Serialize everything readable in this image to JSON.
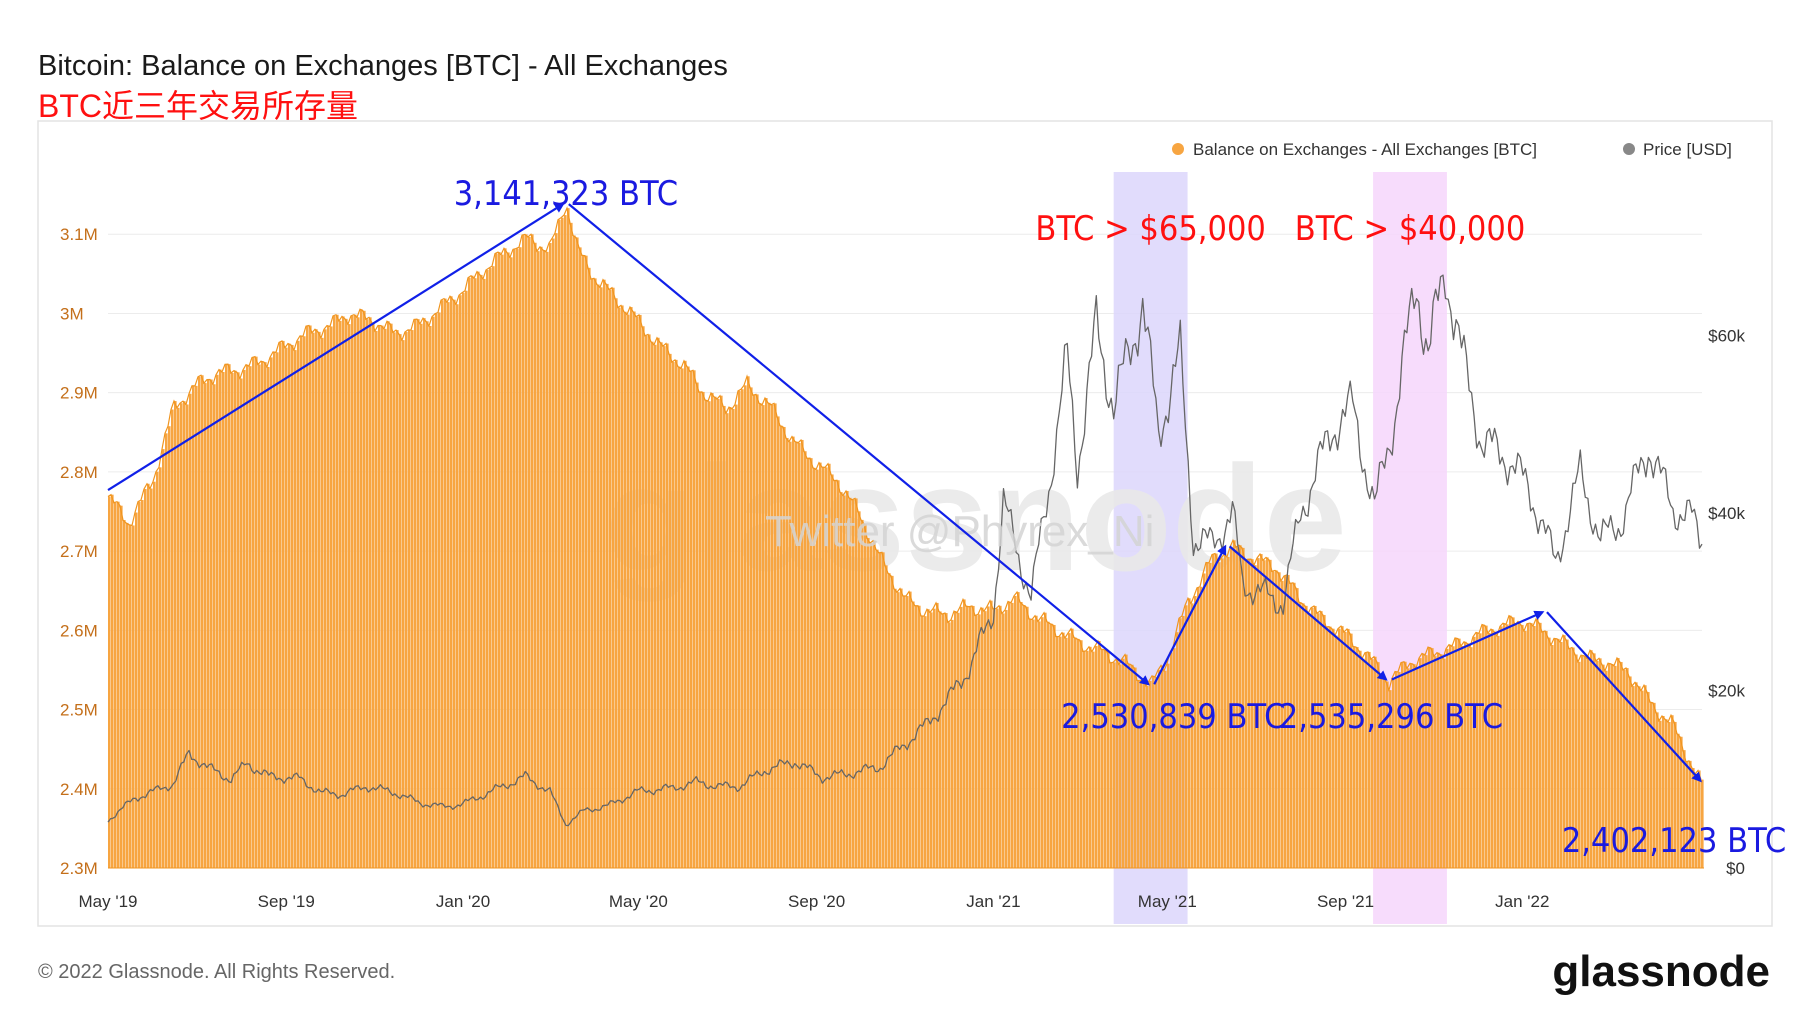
{
  "header": {
    "title": "Bitcoin: Balance on Exchanges [BTC] - All Exchanges",
    "subtitle_cn": "BTC近三年交易所存量"
  },
  "legend": [
    {
      "label": "Balance on Exchanges - All Exchanges [BTC]",
      "color": "#f7a541"
    },
    {
      "label": "Price [USD]",
      "color": "#888888"
    }
  ],
  "watermark": {
    "logo": "glassnode",
    "twitter": "Twitter @Phyrex_Ni"
  },
  "footer": {
    "copyright": "© 2022 Glassnode. All Rights Reserved.",
    "logo": "glassnode"
  },
  "highlights": [
    {
      "label": "BTC > $65,000",
      "from": "2021-03-25",
      "to": "2021-05-15",
      "color": "#dcd6fb"
    },
    {
      "label": "BTC > $40,000",
      "from": "2021-09-20",
      "to": "2021-11-10",
      "color": "#f6d6fb"
    }
  ],
  "annotations": [
    {
      "label": "3,141,323 BTC",
      "date": "2020-03-12",
      "value": 3141323
    },
    {
      "label": "2,530,839 BTC",
      "date": "2021-04-20",
      "value": 2530839
    },
    {
      "label": "2,535,296 BTC",
      "date": "2021-10-01",
      "value": 2535296
    },
    {
      "label": "2,402,123 BTC",
      "date": "2022-05-05",
      "value": 2402123
    }
  ],
  "chart_data": {
    "type": "bar",
    "title": "Bitcoin: Balance on Exchanges [BTC] - All Exchanges",
    "x_ticks": [
      "May '19",
      "Sep '19",
      "Jan '20",
      "May '20",
      "Sep '20",
      "Jan '21",
      "May '21",
      "Sep '21",
      "Jan '22"
    ],
    "x_tick_dates": [
      "2019-05-01",
      "2019-09-01",
      "2020-01-01",
      "2020-05-01",
      "2020-09-01",
      "2021-01-01",
      "2021-05-01",
      "2021-09-01",
      "2022-01-01"
    ],
    "x_range": [
      "2019-05-01",
      "2022-05-05"
    ],
    "y_left": {
      "ticks": [
        "2.3M",
        "2.4M",
        "2.5M",
        "2.6M",
        "2.7M",
        "2.8M",
        "2.9M",
        "3M",
        "3.1M"
      ],
      "range": [
        2300000,
        3200000
      ],
      "color": "#c46f1a"
    },
    "y_right": {
      "ticks": [
        "$0",
        "$20k",
        "$40k",
        "$60k"
      ],
      "range": [
        0,
        80000
      ]
    },
    "grid": true,
    "legend_position": "top-right",
    "series": [
      {
        "name": "Balance on Exchanges - All Exchanges [BTC]",
        "type": "bar",
        "color": "#f7a541",
        "points": [
          [
            "2019-05-01",
            2770000
          ],
          [
            "2019-05-15",
            2735000
          ],
          [
            "2019-06-01",
            2790000
          ],
          [
            "2019-06-15",
            2880000
          ],
          [
            "2019-07-01",
            2910000
          ],
          [
            "2019-07-15",
            2925000
          ],
          [
            "2019-08-01",
            2930000
          ],
          [
            "2019-08-15",
            2940000
          ],
          [
            "2019-09-01",
            2960000
          ],
          [
            "2019-09-15",
            2975000
          ],
          [
            "2019-10-01",
            2985000
          ],
          [
            "2019-10-15",
            3000000
          ],
          [
            "2019-11-01",
            2990000
          ],
          [
            "2019-11-15",
            2975000
          ],
          [
            "2019-12-01",
            2985000
          ],
          [
            "2019-12-15",
            3005000
          ],
          [
            "2020-01-01",
            3030000
          ],
          [
            "2020-01-15",
            3055000
          ],
          [
            "2020-02-01",
            3080000
          ],
          [
            "2020-02-15",
            3095000
          ],
          [
            "2020-03-01",
            3080000
          ],
          [
            "2020-03-12",
            3141323
          ],
          [
            "2020-03-20",
            3080000
          ],
          [
            "2020-04-01",
            3045000
          ],
          [
            "2020-04-15",
            3020000
          ],
          [
            "2020-05-01",
            2990000
          ],
          [
            "2020-05-15",
            2960000
          ],
          [
            "2020-06-01",
            2935000
          ],
          [
            "2020-06-15",
            2900000
          ],
          [
            "2020-07-01",
            2880000
          ],
          [
            "2020-07-15",
            2910000
          ],
          [
            "2020-08-01",
            2880000
          ],
          [
            "2020-08-15",
            2840000
          ],
          [
            "2020-09-01",
            2810000
          ],
          [
            "2020-09-15",
            2790000
          ],
          [
            "2020-10-01",
            2745000
          ],
          [
            "2020-10-15",
            2690000
          ],
          [
            "2020-11-01",
            2640000
          ],
          [
            "2020-11-15",
            2625000
          ],
          [
            "2020-12-01",
            2620000
          ],
          [
            "2020-12-15",
            2630000
          ],
          [
            "2021-01-01",
            2625000
          ],
          [
            "2021-01-15",
            2640000
          ],
          [
            "2021-02-01",
            2615000
          ],
          [
            "2021-02-15",
            2600000
          ],
          [
            "2021-03-01",
            2585000
          ],
          [
            "2021-03-15",
            2575000
          ],
          [
            "2021-04-01",
            2560000
          ],
          [
            "2021-04-20",
            2530839
          ],
          [
            "2021-05-01",
            2565000
          ],
          [
            "2021-05-15",
            2635000
          ],
          [
            "2021-06-01",
            2690000
          ],
          [
            "2021-06-15",
            2705000
          ],
          [
            "2021-07-01",
            2690000
          ],
          [
            "2021-07-15",
            2680000
          ],
          [
            "2021-08-01",
            2640000
          ],
          [
            "2021-08-15",
            2615000
          ],
          [
            "2021-09-01",
            2595000
          ],
          [
            "2021-09-15",
            2570000
          ],
          [
            "2021-10-01",
            2535296
          ],
          [
            "2021-10-15",
            2560000
          ],
          [
            "2021-11-01",
            2572000
          ],
          [
            "2021-11-15",
            2580000
          ],
          [
            "2021-12-01",
            2595000
          ],
          [
            "2021-12-15",
            2605000
          ],
          [
            "2022-01-01",
            2612000
          ],
          [
            "2022-01-15",
            2600000
          ],
          [
            "2022-02-01",
            2580000
          ],
          [
            "2022-02-15",
            2565000
          ],
          [
            "2022-03-01",
            2560000
          ],
          [
            "2022-03-15",
            2548000
          ],
          [
            "2022-04-01",
            2505000
          ],
          [
            "2022-04-15",
            2480000
          ],
          [
            "2022-05-05",
            2402123
          ]
        ]
      },
      {
        "name": "Price [USD]",
        "type": "line",
        "axis": "right",
        "color": "#777777",
        "points": [
          [
            "2019-05-01",
            5400
          ],
          [
            "2019-05-20",
            7900
          ],
          [
            "2019-06-01",
            8600
          ],
          [
            "2019-06-15",
            9500
          ],
          [
            "2019-06-26",
            12900
          ],
          [
            "2019-07-10",
            11200
          ],
          [
            "2019-07-25",
            10000
          ],
          [
            "2019-08-05",
            11800
          ],
          [
            "2019-08-20",
            10300
          ],
          [
            "2019-09-10",
            10100
          ],
          [
            "2019-09-25",
            8500
          ],
          [
            "2019-10-10",
            8300
          ],
          [
            "2019-10-26",
            9200
          ],
          [
            "2019-11-15",
            8500
          ],
          [
            "2019-12-01",
            7400
          ],
          [
            "2019-12-18",
            6900
          ],
          [
            "2020-01-01",
            7200
          ],
          [
            "2020-01-20",
            8600
          ],
          [
            "2020-02-13",
            10300
          ],
          [
            "2020-03-01",
            8600
          ],
          [
            "2020-03-12",
            4900
          ],
          [
            "2020-03-25",
            6500
          ],
          [
            "2020-04-10",
            7000
          ],
          [
            "2020-04-30",
            8600
          ],
          [
            "2020-05-10",
            8800
          ],
          [
            "2020-05-25",
            9000
          ],
          [
            "2020-06-10",
            9700
          ],
          [
            "2020-06-25",
            9200
          ],
          [
            "2020-07-10",
            9200
          ],
          [
            "2020-07-27",
            11000
          ],
          [
            "2020-08-17",
            12000
          ],
          [
            "2020-09-05",
            10200
          ],
          [
            "2020-09-25",
            10700
          ],
          [
            "2020-10-15",
            11400
          ],
          [
            "2020-10-30",
            13700
          ],
          [
            "2020-11-15",
            16000
          ],
          [
            "2020-12-01",
            19000
          ],
          [
            "2020-12-17",
            23000
          ],
          [
            "2021-01-01",
            29000
          ],
          [
            "2021-01-08",
            41000
          ],
          [
            "2021-01-27",
            30500
          ],
          [
            "2021-02-10",
            44800
          ],
          [
            "2021-02-21",
            57500
          ],
          [
            "2021-02-28",
            45200
          ],
          [
            "2021-03-13",
            61000
          ],
          [
            "2021-03-25",
            52000
          ],
          [
            "2021-04-14",
            63500
          ],
          [
            "2021-04-25",
            49000
          ],
          [
            "2021-05-10",
            58000
          ],
          [
            "2021-05-19",
            37000
          ],
          [
            "2021-06-01",
            36500
          ],
          [
            "2021-06-15",
            40000
          ],
          [
            "2021-06-22",
            32000
          ],
          [
            "2021-07-20",
            29800
          ],
          [
            "2021-08-01",
            40000
          ],
          [
            "2021-08-23",
            49500
          ],
          [
            "2021-09-06",
            52000
          ],
          [
            "2021-09-21",
            40500
          ],
          [
            "2021-10-05",
            51000
          ],
          [
            "2021-10-20",
            66000
          ],
          [
            "2021-10-28",
            58000
          ],
          [
            "2021-11-09",
            67500
          ],
          [
            "2021-11-20",
            58000
          ],
          [
            "2021-12-04",
            48000
          ],
          [
            "2021-12-20",
            46500
          ],
          [
            "2022-01-05",
            43000
          ],
          [
            "2022-01-24",
            34500
          ],
          [
            "2022-02-10",
            44500
          ],
          [
            "2022-02-24",
            37000
          ],
          [
            "2022-03-10",
            39000
          ],
          [
            "2022-03-29",
            47500
          ],
          [
            "2022-04-15",
            40500
          ],
          [
            "2022-04-28",
            39500
          ],
          [
            "2022-05-05",
            36500
          ]
        ]
      }
    ]
  }
}
